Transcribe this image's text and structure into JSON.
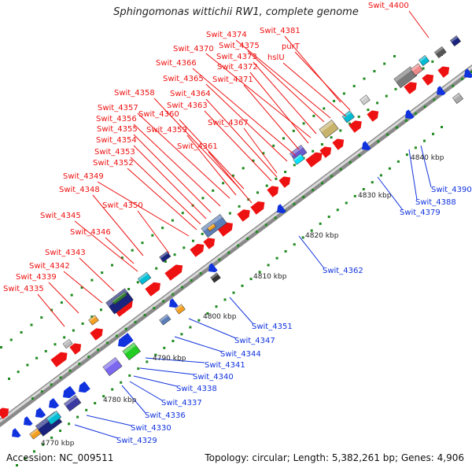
{
  "title": "Sphingomonas wittichii RW1, complete genome",
  "footer": {
    "accession": "Accession: NC_009511",
    "summary": "Topology: circular; Length: 5,382,261 bp; Genes: 4,906"
  },
  "colors": {
    "forward": "#ee1111",
    "reverse": "#1133dd",
    "backbone": "#9a9a9a",
    "tick": "#1f8a1f"
  },
  "scale_ticks": [
    "4770 kbp",
    "4780 kbp",
    "4790 kbp",
    "4800 kbp",
    "4810 kbp",
    "4820 kbp",
    "4830 kbp",
    "4840 kbp"
  ],
  "forward_labels": [
    "Swit_4400",
    "Swit_4381",
    "Swit_4374",
    "Swit_4375",
    "purT",
    "Swit_4370",
    "Swit_4373",
    "hslU",
    "Swit_4372",
    "Swit_4366",
    "Swit_4371",
    "Swit_4365",
    "Swit_4358",
    "Swit_4364",
    "Swit_4363",
    "Swit_4357",
    "Swit_4360",
    "Swit_4356",
    "Swit_4367",
    "Swit_4355",
    "Swit_4359",
    "Swit_4354",
    "Swit_4361",
    "Swit_4353",
    "Swit_4352",
    "Swit_4349",
    "Swit_4348",
    "Swit_4350",
    "Swit_4345",
    "Swit_4346",
    "Swit_4343",
    "Swit_4342",
    "Swit_4339",
    "Swit_4335"
  ],
  "reverse_labels": [
    "Swit_4390",
    "Swit_4388",
    "Swit_4379",
    "Swit_4362",
    "Swit_4351",
    "Swit_4347",
    "Swit_4344",
    "Swit_4341",
    "Swit_4340",
    "Swit_4338",
    "Swit_4337",
    "Swit_4336",
    "Swit_4330",
    "Swit_4329"
  ]
}
